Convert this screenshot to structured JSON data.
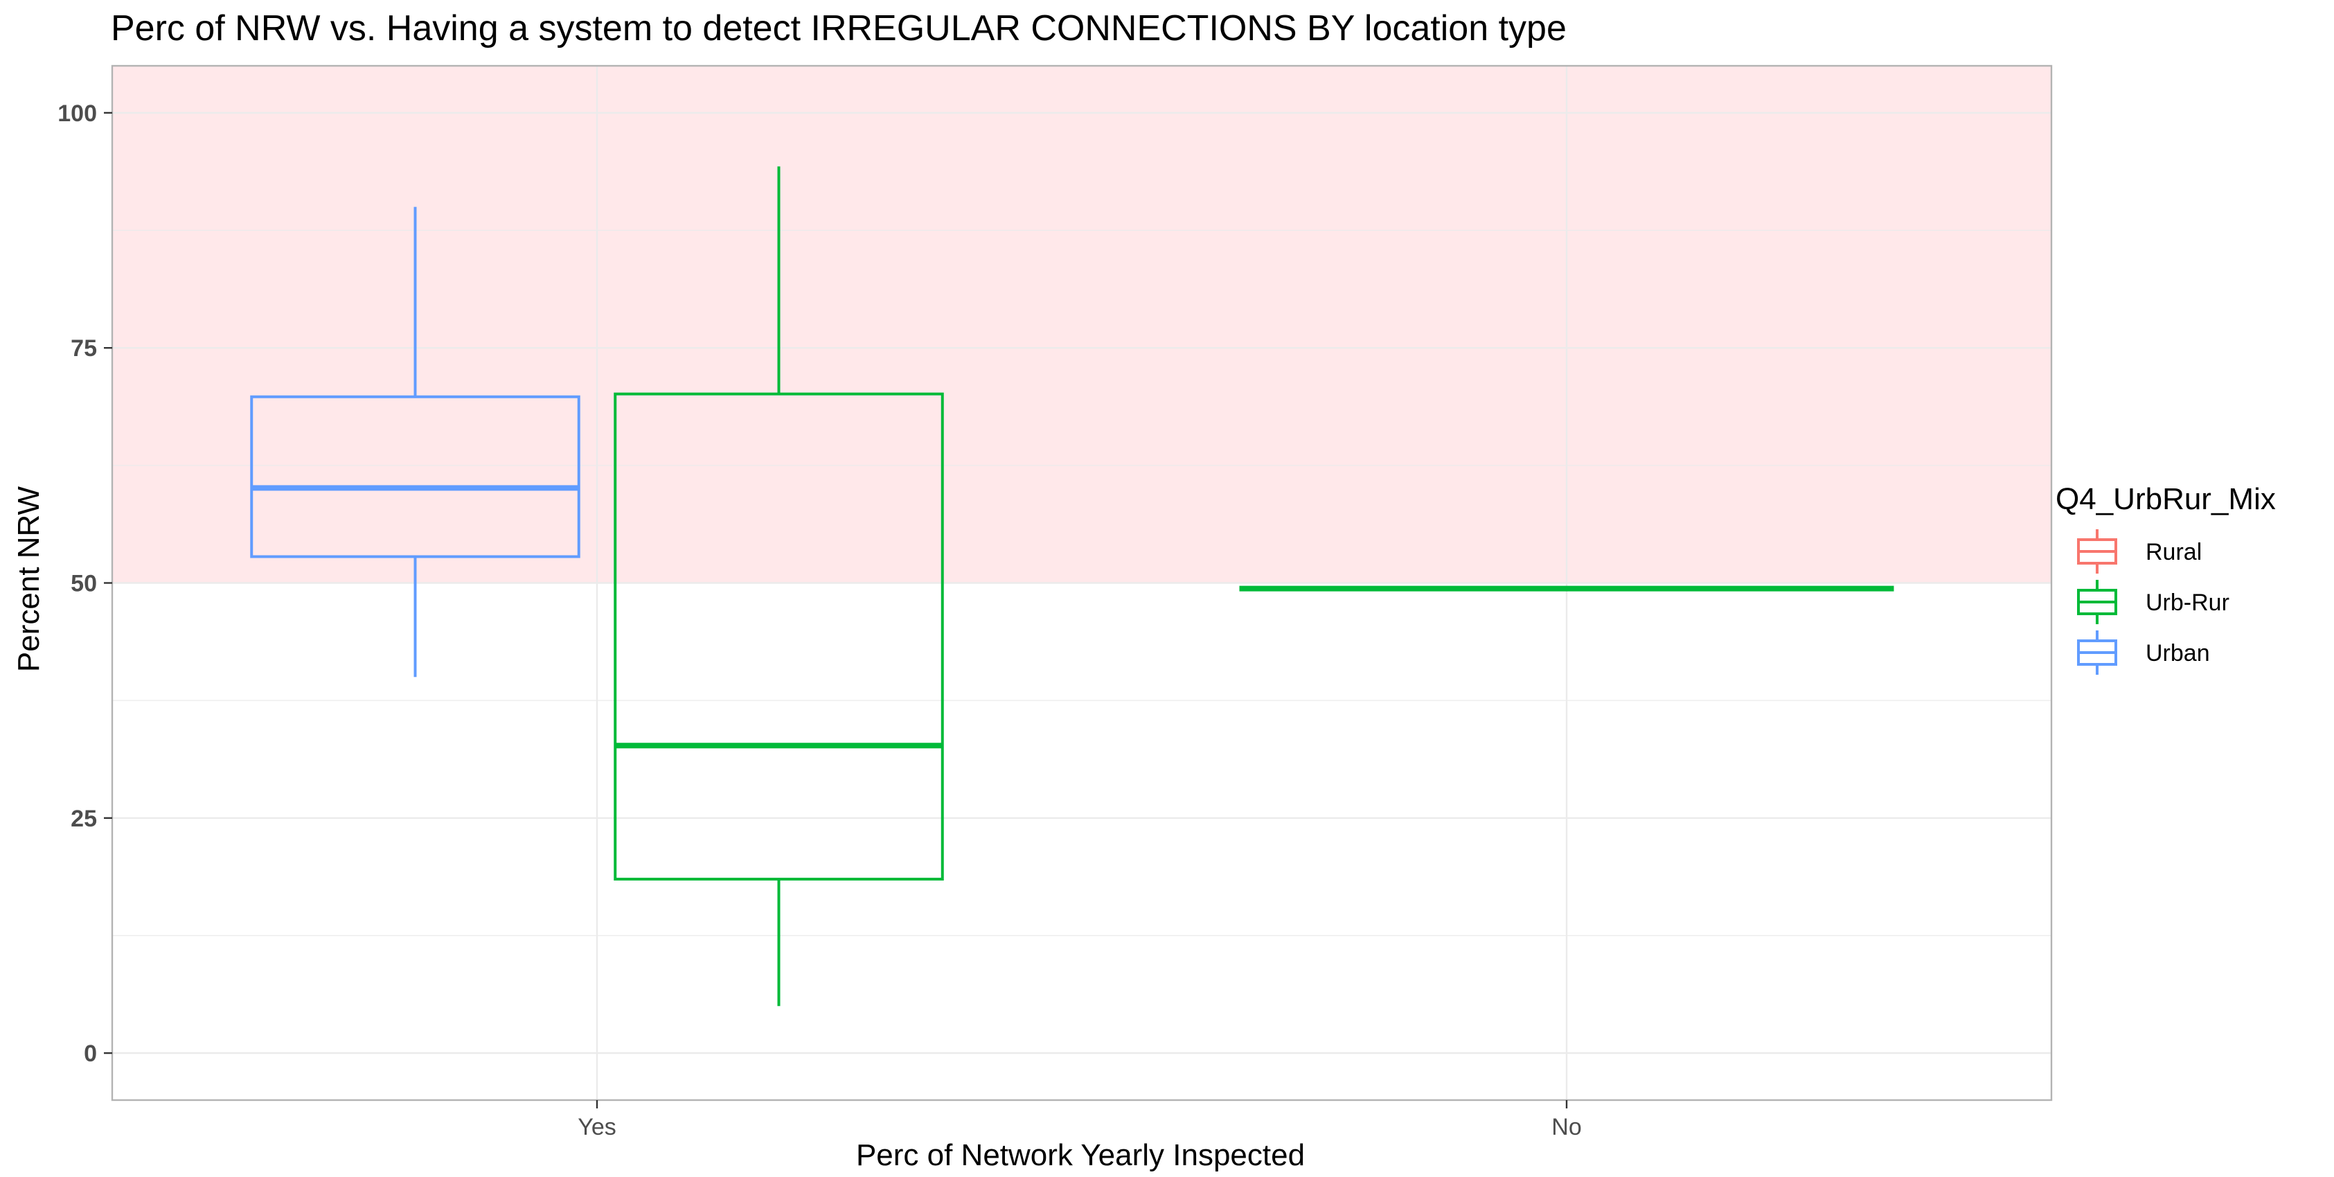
{
  "chart_data": {
    "type": "box",
    "title": "Perc of NRW vs. Having a system to detect IRREGULAR CONNECTIONS BY location type",
    "xlabel": "Perc of Network Yearly Inspected",
    "ylabel": "Percent NRW",
    "categories": [
      "Yes",
      "No"
    ],
    "ylim": [
      -5,
      105
    ],
    "yticks": [
      0,
      25,
      50,
      75,
      100
    ],
    "grid": true,
    "shaded_band": {
      "y_from": 50,
      "y_to": 105,
      "color": "#ffe8ea"
    },
    "legend": {
      "title": "Q4_UrbRur_Mix",
      "position": "right",
      "entries": [
        {
          "name": "Rural",
          "color": "#f8766d"
        },
        {
          "name": "Urb-Rur",
          "color": "#00ba38"
        },
        {
          "name": "Urban",
          "color": "#619cff"
        }
      ]
    },
    "series": [
      {
        "name": "Rural",
        "color": "#f8766d",
        "boxes": []
      },
      {
        "name": "Urb-Rur",
        "color": "#00ba38",
        "boxes": [
          {
            "category": "Yes",
            "slot": 1,
            "nslots": 2,
            "min": 5,
            "q1": 18.5,
            "median": 32.7,
            "q3": 70.1,
            "max": 94.3
          },
          {
            "category": "No",
            "slot": 0,
            "nslots": 1,
            "min": 49.4,
            "q1": 49.4,
            "median": 49.4,
            "q3": 49.4,
            "max": 49.4
          }
        ]
      },
      {
        "name": "Urban",
        "color": "#619cff",
        "boxes": [
          {
            "category": "Yes",
            "slot": 0,
            "nslots": 2,
            "min": 40,
            "q1": 52.8,
            "median": 60.1,
            "q3": 69.8,
            "max": 90
          }
        ]
      }
    ]
  }
}
